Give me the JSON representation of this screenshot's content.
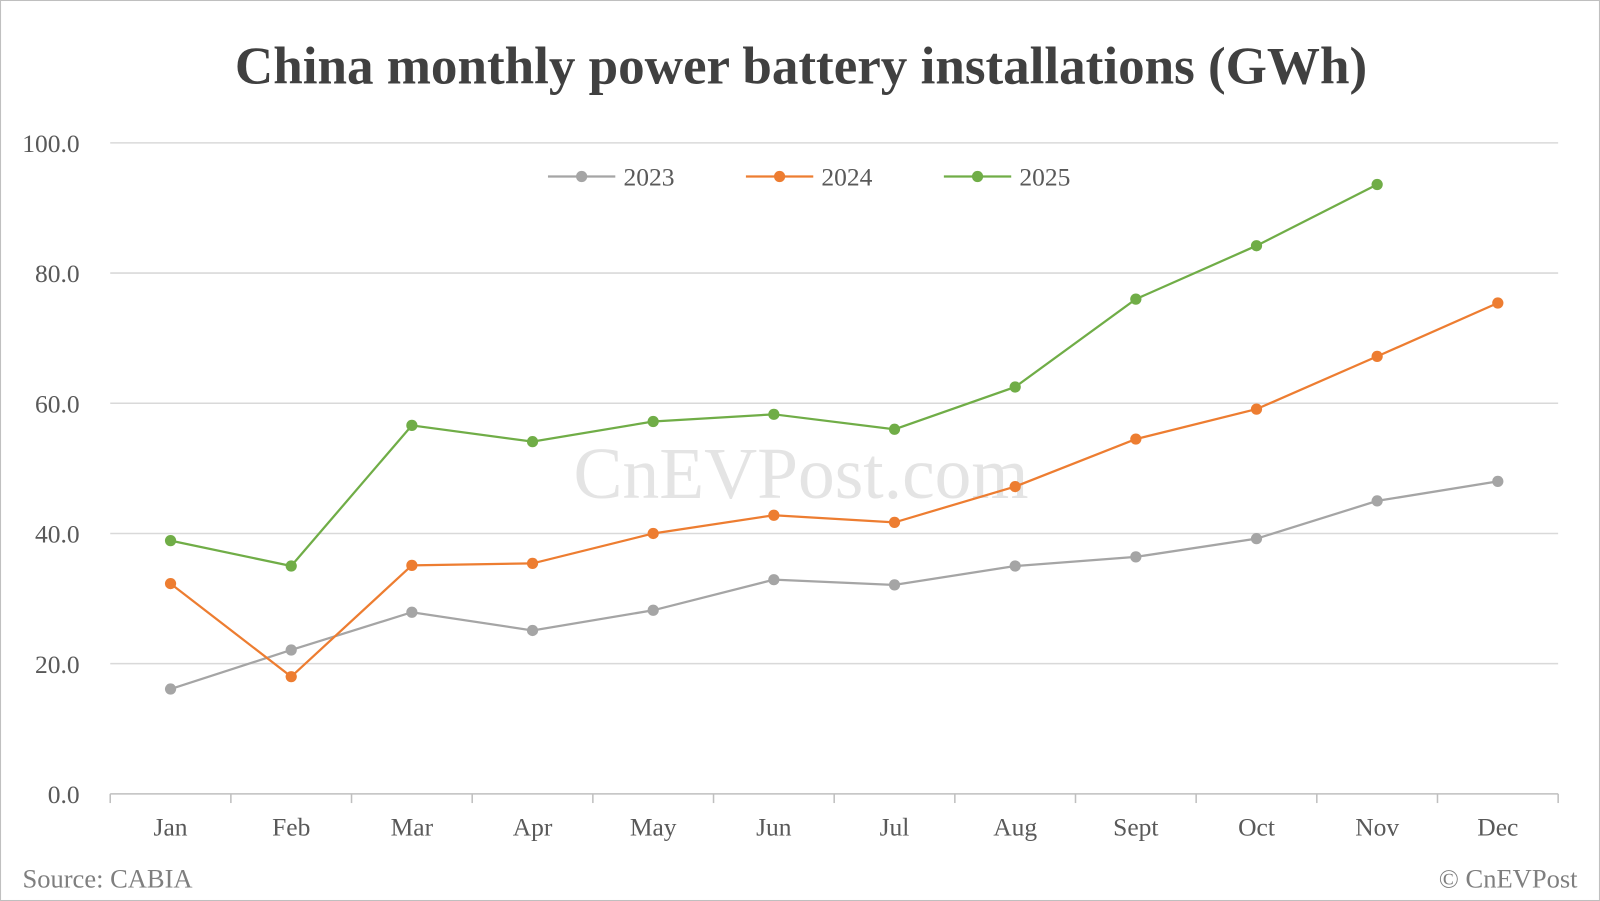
{
  "chart_data": {
    "type": "line",
    "title": "China monthly power battery installations (GWh)",
    "categories": [
      "Jan",
      "Feb",
      "Mar",
      "Apr",
      "May",
      "Jun",
      "Jul",
      "Aug",
      "Sept",
      "Oct",
      "Nov",
      "Dec"
    ],
    "ylim": [
      0,
      100
    ],
    "yticks": [
      "0.0",
      "20.0",
      "40.0",
      "60.0",
      "80.0",
      "100.0"
    ],
    "grid": true,
    "legend": "top-center",
    "series": [
      {
        "name": "2023",
        "color": "#a5a5a5",
        "values": [
          16.1,
          22.1,
          27.9,
          25.1,
          28.2,
          32.9,
          32.1,
          35.0,
          36.4,
          39.2,
          45.0,
          48.0
        ]
      },
      {
        "name": "2024",
        "color": "#ed7d31",
        "values": [
          32.3,
          18.0,
          35.1,
          35.4,
          40.0,
          42.8,
          41.7,
          47.2,
          54.5,
          59.1,
          67.2,
          75.4
        ]
      },
      {
        "name": "2025",
        "color": "#70ad47",
        "values": [
          38.9,
          35.0,
          56.6,
          54.1,
          57.2,
          58.3,
          56.0,
          62.5,
          76.0,
          84.2,
          93.6,
          null
        ]
      }
    ]
  },
  "watermark": "CnEVPost.com",
  "footer": {
    "source": "Source: CABIA",
    "copyright": "© CnEVPost"
  }
}
